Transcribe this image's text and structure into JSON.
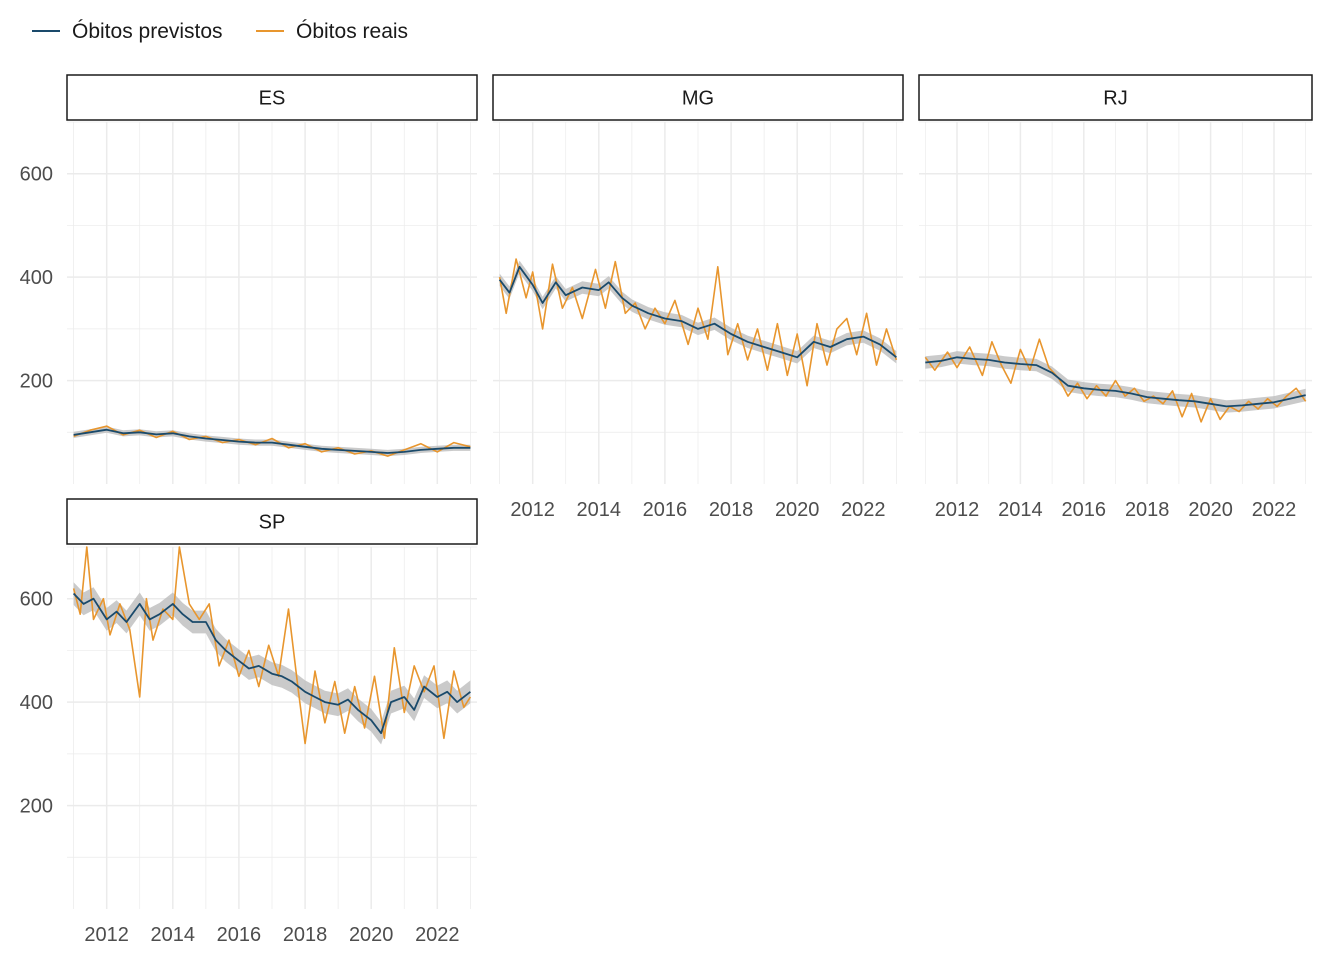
{
  "chart_data": {
    "type": "line",
    "legend": {
      "position": "top-left",
      "entries": [
        {
          "name": "Óbitos previstos",
          "color": "#1a4a6b"
        },
        {
          "name": "Óbitos reais",
          "color": "#e8962e"
        }
      ]
    },
    "colors": {
      "predicted": "#1a4a6b",
      "actual": "#e8962e",
      "band": "#bdbdbd",
      "grid": "#ebebeb"
    },
    "x_ticks": [
      "2012",
      "2014",
      "2016",
      "2018",
      "2020",
      "2022"
    ],
    "y_ticks": [
      "200",
      "400",
      "600"
    ],
    "xlim": [
      2010.8,
      2023.2
    ],
    "ylim": [
      0,
      700
    ],
    "grid": true,
    "facets": [
      {
        "name": "ES",
        "predicted": [
          [
            2011.0,
            95
          ],
          [
            2011.5,
            100
          ],
          [
            2012.0,
            105
          ],
          [
            2012.5,
            98
          ],
          [
            2013.0,
            100
          ],
          [
            2013.5,
            96
          ],
          [
            2014.0,
            98
          ],
          [
            2014.5,
            92
          ],
          [
            2015.0,
            88
          ],
          [
            2015.5,
            85
          ],
          [
            2016.0,
            82
          ],
          [
            2016.5,
            80
          ],
          [
            2017.0,
            80
          ],
          [
            2017.5,
            76
          ],
          [
            2018.0,
            72
          ],
          [
            2018.5,
            68
          ],
          [
            2019.0,
            66
          ],
          [
            2019.5,
            64
          ],
          [
            2020.0,
            62
          ],
          [
            2020.5,
            60
          ],
          [
            2021.0,
            62
          ],
          [
            2021.5,
            66
          ],
          [
            2022.0,
            68
          ],
          [
            2022.5,
            70
          ],
          [
            2023.0,
            70
          ]
        ],
        "actual": [
          [
            2011.0,
            92
          ],
          [
            2011.5,
            104
          ],
          [
            2012.0,
            112
          ],
          [
            2012.5,
            95
          ],
          [
            2013.0,
            104
          ],
          [
            2013.5,
            90
          ],
          [
            2014.0,
            102
          ],
          [
            2014.5,
            86
          ],
          [
            2015.0,
            92
          ],
          [
            2015.5,
            80
          ],
          [
            2016.0,
            86
          ],
          [
            2016.5,
            76
          ],
          [
            2017.0,
            88
          ],
          [
            2017.5,
            70
          ],
          [
            2018.0,
            78
          ],
          [
            2018.5,
            62
          ],
          [
            2019.0,
            70
          ],
          [
            2019.5,
            58
          ],
          [
            2020.0,
            64
          ],
          [
            2020.5,
            54
          ],
          [
            2021.0,
            66
          ],
          [
            2021.5,
            78
          ],
          [
            2022.0,
            62
          ],
          [
            2022.5,
            80
          ],
          [
            2023.0,
            72
          ]
        ]
      },
      {
        "name": "MG",
        "predicted": [
          [
            2011.0,
            395
          ],
          [
            2011.3,
            370
          ],
          [
            2011.6,
            420
          ],
          [
            2012.0,
            385
          ],
          [
            2012.3,
            350
          ],
          [
            2012.7,
            390
          ],
          [
            2013.0,
            365
          ],
          [
            2013.5,
            380
          ],
          [
            2014.0,
            375
          ],
          [
            2014.3,
            390
          ],
          [
            2014.7,
            360
          ],
          [
            2015.0,
            345
          ],
          [
            2015.5,
            330
          ],
          [
            2016.0,
            320
          ],
          [
            2016.5,
            315
          ],
          [
            2017.0,
            300
          ],
          [
            2017.5,
            310
          ],
          [
            2018.0,
            290
          ],
          [
            2018.5,
            275
          ],
          [
            2019.0,
            265
          ],
          [
            2019.5,
            255
          ],
          [
            2020.0,
            245
          ],
          [
            2020.5,
            275
          ],
          [
            2021.0,
            265
          ],
          [
            2021.5,
            280
          ],
          [
            2022.0,
            285
          ],
          [
            2022.5,
            270
          ],
          [
            2023.0,
            245
          ]
        ],
        "actual": [
          [
            2011.0,
            400
          ],
          [
            2011.2,
            330
          ],
          [
            2011.5,
            435
          ],
          [
            2011.8,
            360
          ],
          [
            2012.0,
            410
          ],
          [
            2012.3,
            300
          ],
          [
            2012.6,
            425
          ],
          [
            2012.9,
            340
          ],
          [
            2013.2,
            380
          ],
          [
            2013.5,
            320
          ],
          [
            2013.9,
            415
          ],
          [
            2014.2,
            340
          ],
          [
            2014.5,
            430
          ],
          [
            2014.8,
            330
          ],
          [
            2015.1,
            350
          ],
          [
            2015.4,
            300
          ],
          [
            2015.7,
            340
          ],
          [
            2016.0,
            310
          ],
          [
            2016.3,
            355
          ],
          [
            2016.7,
            270
          ],
          [
            2017.0,
            340
          ],
          [
            2017.3,
            280
          ],
          [
            2017.6,
            420
          ],
          [
            2017.9,
            250
          ],
          [
            2018.2,
            310
          ],
          [
            2018.5,
            240
          ],
          [
            2018.8,
            300
          ],
          [
            2019.1,
            220
          ],
          [
            2019.4,
            310
          ],
          [
            2019.7,
            210
          ],
          [
            2020.0,
            290
          ],
          [
            2020.3,
            190
          ],
          [
            2020.6,
            310
          ],
          [
            2020.9,
            230
          ],
          [
            2021.2,
            300
          ],
          [
            2021.5,
            320
          ],
          [
            2021.8,
            250
          ],
          [
            2022.1,
            330
          ],
          [
            2022.4,
            230
          ],
          [
            2022.7,
            300
          ],
          [
            2023.0,
            240
          ]
        ]
      },
      {
        "name": "RJ",
        "predicted": [
          [
            2011.0,
            235
          ],
          [
            2011.5,
            238
          ],
          [
            2012.0,
            245
          ],
          [
            2012.5,
            242
          ],
          [
            2013.0,
            240
          ],
          [
            2013.5,
            235
          ],
          [
            2014.0,
            232
          ],
          [
            2014.5,
            230
          ],
          [
            2015.0,
            215
          ],
          [
            2015.5,
            190
          ],
          [
            2016.0,
            185
          ],
          [
            2016.5,
            182
          ],
          [
            2017.0,
            180
          ],
          [
            2017.5,
            175
          ],
          [
            2018.0,
            168
          ],
          [
            2018.5,
            165
          ],
          [
            2019.0,
            162
          ],
          [
            2019.5,
            160
          ],
          [
            2020.0,
            155
          ],
          [
            2020.5,
            150
          ],
          [
            2021.0,
            152
          ],
          [
            2021.5,
            155
          ],
          [
            2022.0,
            158
          ],
          [
            2022.5,
            165
          ],
          [
            2023.0,
            172
          ]
        ],
        "actual": [
          [
            2011.0,
            245
          ],
          [
            2011.3,
            220
          ],
          [
            2011.7,
            255
          ],
          [
            2012.0,
            225
          ],
          [
            2012.4,
            265
          ],
          [
            2012.8,
            210
          ],
          [
            2013.1,
            275
          ],
          [
            2013.4,
            230
          ],
          [
            2013.7,
            195
          ],
          [
            2014.0,
            260
          ],
          [
            2014.3,
            220
          ],
          [
            2014.6,
            280
          ],
          [
            2014.9,
            225
          ],
          [
            2015.2,
            205
          ],
          [
            2015.5,
            170
          ],
          [
            2015.8,
            195
          ],
          [
            2016.1,
            165
          ],
          [
            2016.4,
            190
          ],
          [
            2016.7,
            170
          ],
          [
            2017.0,
            200
          ],
          [
            2017.3,
            170
          ],
          [
            2017.6,
            185
          ],
          [
            2017.9,
            160
          ],
          [
            2018.2,
            170
          ],
          [
            2018.5,
            155
          ],
          [
            2018.8,
            180
          ],
          [
            2019.1,
            130
          ],
          [
            2019.4,
            175
          ],
          [
            2019.7,
            120
          ],
          [
            2020.0,
            165
          ],
          [
            2020.3,
            125
          ],
          [
            2020.6,
            150
          ],
          [
            2020.9,
            140
          ],
          [
            2021.2,
            160
          ],
          [
            2021.5,
            145
          ],
          [
            2021.8,
            165
          ],
          [
            2022.1,
            150
          ],
          [
            2022.4,
            170
          ],
          [
            2022.7,
            185
          ],
          [
            2023.0,
            160
          ]
        ]
      },
      {
        "name": "SP",
        "predicted": [
          [
            2011.0,
            610
          ],
          [
            2011.3,
            590
          ],
          [
            2011.6,
            600
          ],
          [
            2012.0,
            560
          ],
          [
            2012.3,
            575
          ],
          [
            2012.6,
            555
          ],
          [
            2013.0,
            590
          ],
          [
            2013.3,
            560
          ],
          [
            2013.6,
            570
          ],
          [
            2014.0,
            590
          ],
          [
            2014.3,
            570
          ],
          [
            2014.6,
            555
          ],
          [
            2015.0,
            555
          ],
          [
            2015.3,
            520
          ],
          [
            2015.6,
            500
          ],
          [
            2016.0,
            480
          ],
          [
            2016.3,
            465
          ],
          [
            2016.6,
            470
          ],
          [
            2017.0,
            455
          ],
          [
            2017.3,
            450
          ],
          [
            2017.6,
            440
          ],
          [
            2018.0,
            420
          ],
          [
            2018.3,
            410
          ],
          [
            2018.6,
            400
          ],
          [
            2019.0,
            395
          ],
          [
            2019.3,
            405
          ],
          [
            2019.6,
            385
          ],
          [
            2020.0,
            365
          ],
          [
            2020.3,
            340
          ],
          [
            2020.6,
            400
          ],
          [
            2021.0,
            410
          ],
          [
            2021.3,
            385
          ],
          [
            2021.6,
            430
          ],
          [
            2022.0,
            410
          ],
          [
            2022.3,
            420
          ],
          [
            2022.6,
            400
          ],
          [
            2023.0,
            420
          ]
        ],
        "actual": [
          [
            2011.0,
            620
          ],
          [
            2011.2,
            570
          ],
          [
            2011.4,
            700
          ],
          [
            2011.6,
            560
          ],
          [
            2011.9,
            600
          ],
          [
            2012.1,
            530
          ],
          [
            2012.4,
            590
          ],
          [
            2012.7,
            540
          ],
          [
            2013.0,
            410
          ],
          [
            2013.2,
            600
          ],
          [
            2013.4,
            520
          ],
          [
            2013.7,
            580
          ],
          [
            2014.0,
            560
          ],
          [
            2014.2,
            700
          ],
          [
            2014.5,
            590
          ],
          [
            2014.8,
            560
          ],
          [
            2015.1,
            590
          ],
          [
            2015.4,
            470
          ],
          [
            2015.7,
            520
          ],
          [
            2016.0,
            450
          ],
          [
            2016.3,
            500
          ],
          [
            2016.6,
            430
          ],
          [
            2016.9,
            510
          ],
          [
            2017.2,
            450
          ],
          [
            2017.5,
            580
          ],
          [
            2017.8,
            420
          ],
          [
            2018.0,
            320
          ],
          [
            2018.3,
            460
          ],
          [
            2018.6,
            360
          ],
          [
            2018.9,
            440
          ],
          [
            2019.2,
            340
          ],
          [
            2019.5,
            430
          ],
          [
            2019.8,
            350
          ],
          [
            2020.1,
            450
          ],
          [
            2020.4,
            330
          ],
          [
            2020.7,
            505
          ],
          [
            2021.0,
            380
          ],
          [
            2021.3,
            470
          ],
          [
            2021.6,
            420
          ],
          [
            2021.9,
            470
          ],
          [
            2022.2,
            330
          ],
          [
            2022.5,
            460
          ],
          [
            2022.8,
            390
          ],
          [
            2023.0,
            410
          ]
        ]
      }
    ]
  }
}
